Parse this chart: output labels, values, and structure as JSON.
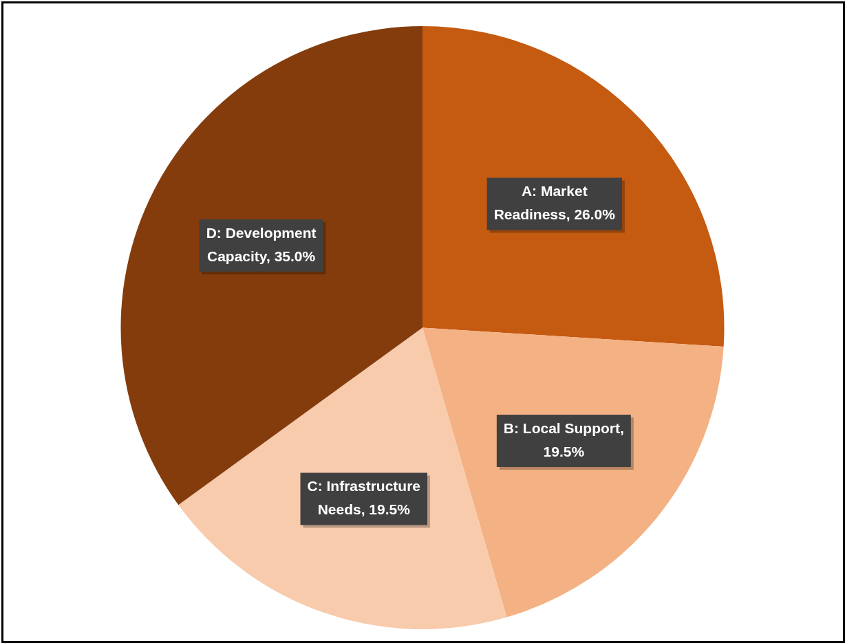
{
  "chart_data": {
    "type": "pie",
    "categories": [
      "A: Market Readiness, 26.0%",
      "B: Local Support, 19.5%",
      "C: Infrastructure Needs, 19.5%",
      "D: Development Capacity, 35.0%"
    ],
    "values": [
      26.0,
      19.5,
      19.5,
      35.0
    ],
    "colors": [
      "#c55a11",
      "#f4b183",
      "#f8cbad",
      "#843c0c"
    ],
    "legend": false
  }
}
